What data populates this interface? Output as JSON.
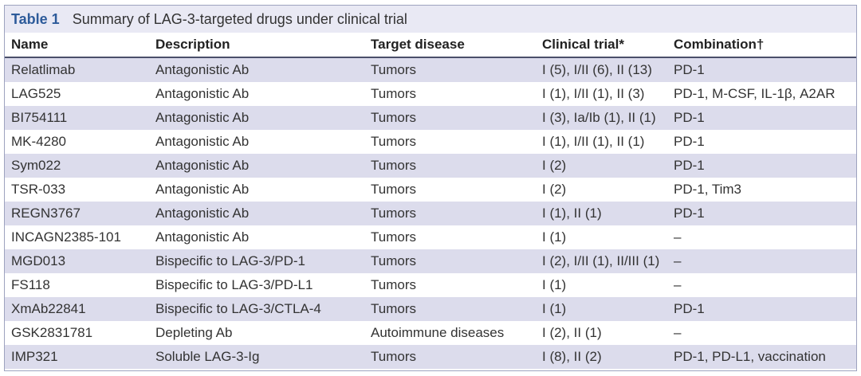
{
  "caption": {
    "label": "Table 1",
    "title": "Summary of LAG-3-targeted drugs under clinical trial"
  },
  "columns": [
    "Name",
    "Description",
    "Target disease",
    "Clinical trial*",
    "Combination†"
  ],
  "rows": [
    [
      "Relatlimab",
      "Antagonistic Ab",
      "Tumors",
      "I (5), I/II (6), II (13)",
      "PD-1"
    ],
    [
      "LAG525",
      "Antagonistic Ab",
      "Tumors",
      "I (1), I/II (1), II (3)",
      "PD-1, M-CSF, IL-1β, A2AR"
    ],
    [
      "BI754111",
      "Antagonistic Ab",
      "Tumors",
      "I (3), Ia/Ib (1), II (1)",
      "PD-1"
    ],
    [
      "MK-4280",
      "Antagonistic Ab",
      "Tumors",
      "I (1), I/II (1), II (1)",
      "PD-1"
    ],
    [
      "Sym022",
      "Antagonistic Ab",
      "Tumors",
      "I (2)",
      "PD-1"
    ],
    [
      "TSR-033",
      "Antagonistic Ab",
      "Tumors",
      "I (2)",
      "PD-1, Tim3"
    ],
    [
      "REGN3767",
      "Antagonistic Ab",
      "Tumors",
      "I (1), II (1)",
      "PD-1"
    ],
    [
      "INCAGN2385-101",
      "Antagonistic Ab",
      "Tumors",
      "I (1)",
      "–"
    ],
    [
      "MGD013",
      "Bispecific to LAG-3/PD-1",
      "Tumors",
      "I (2), I/II (1), II/III (1)",
      "–"
    ],
    [
      "FS118",
      "Bispecific to LAG-3/PD-L1",
      "Tumors",
      "I (1)",
      "–"
    ],
    [
      "XmAb22841",
      "Bispecific to LAG-3/CTLA-4",
      "Tumors",
      "I (1)",
      "PD-1"
    ],
    [
      "GSK2831781",
      "Depleting Ab",
      "Autoimmune diseases",
      "I (2), II (1)",
      "–"
    ],
    [
      "IMP321",
      "Soluble LAG-3-Ig",
      "Tumors",
      "I (8), II (2)",
      "PD-1, PD-L1, vaccination"
    ]
  ]
}
